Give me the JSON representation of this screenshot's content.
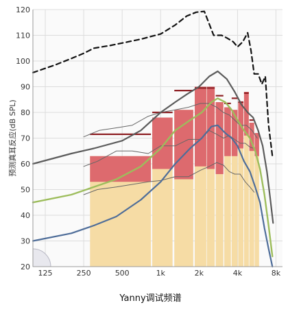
{
  "chart_data": {
    "type": "line",
    "title": "Yanny调试频谱",
    "ylabel": "预测真耳反应(dB SPL)",
    "xscale": "log",
    "xlim": [
      100,
      9000
    ],
    "ylim": [
      20,
      120
    ],
    "x_ticks": [
      {
        "value": 125,
        "label": "125"
      },
      {
        "value": 250,
        "label": "250"
      },
      {
        "value": 500,
        "label": "500"
      },
      {
        "value": 1000,
        "label": "1k"
      },
      {
        "value": 2000,
        "label": "2k"
      },
      {
        "value": 4000,
        "label": "4k"
      },
      {
        "value": 8000,
        "label": "8k"
      }
    ],
    "y_ticks": [
      20,
      30,
      40,
      50,
      60,
      70,
      80,
      90,
      100,
      110,
      120
    ],
    "grid": true,
    "colors": {
      "speech_band": "#f6dca5",
      "range_band": "#dd6a6e",
      "target_marker": "#8e2024",
      "dashed_line": "#111111",
      "dark_gray_line": "#5b5b5b",
      "green_line": "#9dbd5c",
      "blue_line": "#4e6d99",
      "thin_line": "#666666",
      "grid": "#dcdcdc",
      "plot_bg": "#fafafa"
    },
    "bands": [
      {
        "x0": 280,
        "x1": 840,
        "low": 53,
        "high": 63
      },
      {
        "x0": 860,
        "x1": 1240,
        "low": 58,
        "high": 78
      },
      {
        "x0": 1280,
        "x1": 1800,
        "low": 54,
        "high": 81
      },
      {
        "x0": 1850,
        "x1": 2280,
        "low": 59,
        "high": 90
      },
      {
        "x0": 2300,
        "x1": 2650,
        "low": 58,
        "high": 90
      },
      {
        "x0": 2700,
        "x1": 3100,
        "low": 56,
        "high": 84
      },
      {
        "x0": 3150,
        "x1": 3550,
        "low": 63,
        "high": 82
      },
      {
        "x0": 3600,
        "x1": 4000,
        "low": 63,
        "high": 81
      },
      {
        "x0": 4050,
        "x1": 4450,
        "low": 66,
        "high": 84
      },
      {
        "x0": 4500,
        "x1": 4900,
        "low": 71,
        "high": 88
      },
      {
        "x0": 4950,
        "x1": 5400,
        "low": 65,
        "high": 76
      },
      {
        "x0": 5450,
        "x1": 5900,
        "low": 63,
        "high": 72
      }
    ],
    "target_markers": [
      {
        "x0": 280,
        "x1": 840,
        "y": 71.5
      },
      {
        "x0": 860,
        "x1": 1240,
        "y": 80
      },
      {
        "x0": 1280,
        "x1": 1800,
        "y": 88.5
      },
      {
        "x0": 1850,
        "x1": 2280,
        "y": 89.5
      },
      {
        "x0": 2300,
        "x1": 2650,
        "y": 89.5
      },
      {
        "x0": 2700,
        "x1": 3100,
        "y": 86.5
      },
      {
        "x0": 3150,
        "x1": 3550,
        "y": 83.5
      },
      {
        "x0": 3600,
        "x1": 4000,
        "y": 85.5
      },
      {
        "x0": 4050,
        "x1": 4450,
        "y": 84
      },
      {
        "x0": 4500,
        "x1": 4900,
        "y": 87.5
      },
      {
        "x0": 4950,
        "x1": 5400,
        "y": 77
      }
    ],
    "series": [
      {
        "key": "dashed",
        "style": "dashed",
        "x": [
          100,
          150,
          200,
          250,
          300,
          400,
          500,
          700,
          1000,
          1300,
          1600,
          1900,
          2200,
          2600,
          3000,
          3300,
          3700,
          4000,
          4400,
          4800,
          5100,
          5400,
          5800,
          6200,
          6600,
          7000,
          7500
        ],
        "y": [
          95.5,
          98.5,
          101,
          103,
          105,
          106,
          107,
          108.5,
          110.5,
          114,
          117.5,
          119,
          119.3,
          110,
          110,
          109,
          107.5,
          105.5,
          107.5,
          111,
          104,
          95,
          95,
          91,
          94,
          75,
          63
        ]
      },
      {
        "key": "dark-gray",
        "style": "solid",
        "x": [
          100,
          200,
          300,
          500,
          700,
          1000,
          1300,
          1600,
          2000,
          2400,
          2800,
          3300,
          3800,
          4300,
          4800,
          5300,
          5800,
          6300,
          6800,
          7200,
          7600
        ],
        "y": [
          60,
          64,
          66,
          69,
          73,
          80,
          84,
          87,
          90,
          94,
          96,
          93,
          88,
          83,
          80,
          78,
          73,
          67,
          57,
          47,
          37
        ]
      },
      {
        "key": "green",
        "style": "solid",
        "x": [
          100,
          200,
          300,
          450,
          700,
          1000,
          1300,
          1700,
          2100,
          2500,
          2800,
          3200,
          3600,
          4000,
          4500,
          5000,
          5500,
          6000,
          6500,
          7000,
          7500
        ],
        "y": [
          45,
          48,
          51,
          54,
          59,
          66,
          73,
          77,
          80,
          84,
          85.5,
          84,
          81,
          77,
          73,
          70,
          65,
          58,
          48,
          36,
          24
        ]
      },
      {
        "key": "blue",
        "style": "solid",
        "x": [
          100,
          200,
          300,
          450,
          700,
          1000,
          1300,
          1700,
          2100,
          2500,
          2800,
          3200,
          3600,
          4000,
          4500,
          5000,
          5500,
          6000,
          6500,
          7000,
          7500
        ],
        "y": [
          30,
          33,
          36,
          39.5,
          46,
          53,
          60,
          66,
          70,
          74.5,
          75,
          72,
          70,
          67,
          61,
          57,
          51,
          45,
          35,
          27,
          20
        ]
      },
      {
        "key": "thin-upper",
        "style": "thin",
        "x": [
          250,
          330,
          450,
          600,
          800,
          1000,
          1300,
          1650,
          2050,
          2400,
          2750,
          3100,
          3450,
          3800,
          4200,
          4700,
          5200,
          5700
        ],
        "y": [
          70.5,
          73,
          74,
          75,
          78.5,
          80,
          81,
          82,
          83.5,
          83.5,
          82,
          80,
          79,
          77,
          75,
          75,
          73,
          70
        ]
      },
      {
        "key": "thin-middle",
        "style": "thin",
        "x": [
          250,
          320,
          450,
          600,
          800,
          1000,
          1300,
          1650,
          2050,
          2400,
          2750,
          3100,
          3450,
          3800,
          4200,
          4600,
          5000,
          5400
        ],
        "y": [
          59,
          61,
          65,
          65,
          64,
          67,
          67,
          69.5,
          69.5,
          73,
          71.5,
          70,
          71,
          69.5,
          68,
          68,
          66.5,
          66
        ]
      },
      {
        "key": "thin-lower",
        "style": "thin",
        "x": [
          250,
          320,
          450,
          600,
          800,
          1000,
          1300,
          1650,
          2050,
          2400,
          2750,
          3100,
          3450,
          3800,
          4200,
          4600,
          5000,
          5400
        ],
        "y": [
          48,
          50,
          51,
          52,
          53,
          53.5,
          55,
          55,
          57.5,
          59,
          60.5,
          59.5,
          57,
          56,
          56,
          53,
          51,
          49
        ]
      }
    ]
  }
}
